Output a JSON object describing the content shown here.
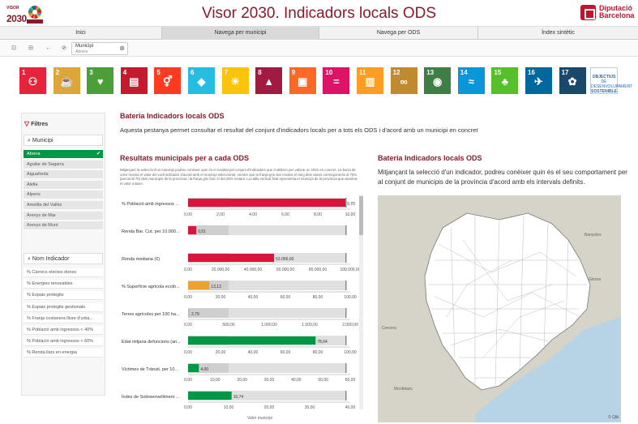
{
  "header": {
    "logo_top": "VISOR",
    "logo_main": "2030",
    "title": "Visor 2030. Indicadors locals ODS",
    "org_line1": "Diputació",
    "org_line2": "Barcelona"
  },
  "nav": {
    "tabs": [
      {
        "label": "Inici"
      },
      {
        "label": "Navega per municipi"
      },
      {
        "label": "Navega per ODS"
      },
      {
        "label": "Índex sintètic"
      }
    ]
  },
  "filter_chip": {
    "label": "Municipi",
    "value": "Abrera"
  },
  "sdg_icons": [
    {
      "num": "1",
      "color": "#e5243b",
      "icon": "family-icon"
    },
    {
      "num": "2",
      "color": "#dda63a",
      "icon": "bowl-icon"
    },
    {
      "num": "3",
      "color": "#4c9f38",
      "icon": "heartbeat-icon"
    },
    {
      "num": "4",
      "color": "#c5192d",
      "icon": "book-icon"
    },
    {
      "num": "5",
      "color": "#ff3a21",
      "icon": "gender-icon"
    },
    {
      "num": "6",
      "color": "#26bde2",
      "icon": "water-drop-icon"
    },
    {
      "num": "7",
      "color": "#fcc30b",
      "icon": "sun-icon"
    },
    {
      "num": "8",
      "color": "#a21942",
      "icon": "growth-chart-icon"
    },
    {
      "num": "9",
      "color": "#fd6925",
      "icon": "cubes-icon"
    },
    {
      "num": "10",
      "color": "#dd1367",
      "icon": "equality-icon"
    },
    {
      "num": "11",
      "color": "#fd9d24",
      "icon": "buildings-icon"
    },
    {
      "num": "12",
      "color": "#bf8b2e",
      "icon": "infinity-icon"
    },
    {
      "num": "13",
      "color": "#3f7e44",
      "icon": "eye-globe-icon"
    },
    {
      "num": "14",
      "color": "#0a97d9",
      "icon": "fish-icon"
    },
    {
      "num": "15",
      "color": "#56c02b",
      "icon": "tree-icon"
    },
    {
      "num": "16",
      "color": "#00689d",
      "icon": "dove-icon"
    },
    {
      "num": "17",
      "color": "#19486a",
      "icon": "flower-icon"
    }
  ],
  "sdg_extra": {
    "line1": "OBJECTIUS",
    "line2": "DE DESENVOLUPAMENT",
    "line3": "SOSTENIBLE"
  },
  "sidebar": {
    "filters_title": "Filtres",
    "municipi_label": "Municipi",
    "municipalities": [
      "Abrera",
      "Aguilar de Segarra",
      "Aiguafreda",
      "Alella",
      "Alpens",
      "Ametlla del Vallès",
      "Arenys de Mar",
      "Arenys de Munt"
    ],
    "selected": "Abrera",
    "indicator_label": "Nom Indicador",
    "indicators": [
      "% Càrrecs electes dones",
      "% Energies renovables",
      "% Espais protegits",
      "% Espais protegits gestionats",
      "% Franja costanera lliure d'urba...",
      "% Població amb ingressos < 40%",
      "% Població amb ingressos < 60%",
      "% Renda llars en energia"
    ]
  },
  "main": {
    "section_title": "Bateria Indicadors locals ODS",
    "intro": "Aquesta pestanya permet consultar el resultat del conjunt d'indicadors locals per a tots els ODS i d'acord amb un municipi en concret",
    "results_title": "Resultats municipals per a cada ODS",
    "results_desc": "Mitjançant la selecció d'un municipi podreu conèixer quin és el resultat pel conjunt d'indicadors que s'utilitzen per valorar un ODS en concret. La barra de color mostra el valor del codi indicador d'acord amb el municipi seleccionat, mentre que la franja gris clar mostra el rang dels valors corresponents al 75% (percentil 75) dels municipis de la província i la franja gris fosc el del 25% restant. La ratlla vertical final representa el municipi de la província que assoleix el valor màxim.",
    "right_title": "Bateria Indicadors locals ODS",
    "right_desc": "Mitjançant la selecció d'un indicador, podreu conèixer quin és el seu comportament per al conjunt de municipis de la província d'acord amb els intervals definits.",
    "x_axis_label": "Valor municipi",
    "map_copyright": "© Qlik"
  },
  "chart_data": {
    "type": "bar",
    "orientation": "horizontal",
    "indicators": [
      {
        "label": "% Població amb ingressos ...",
        "value": 9.7,
        "value_label": "9,70",
        "max": 10,
        "ticks": [
          "0,00",
          "2,00",
          "4,00",
          "6,00",
          "8,00",
          "10,00"
        ],
        "color": "#dc143c"
      },
      {
        "label": "Renda Bar. Cut. per 10.000...",
        "value": 0.51,
        "value_label": "0,51",
        "max": 10,
        "ticks": [],
        "color": "#dc143c"
      },
      {
        "label": "Renda mediana (€)",
        "value": 53066,
        "value_label": "53.066,00",
        "max": 100000,
        "ticks": [
          "0,00",
          "20.000,00",
          "40.000,00",
          "60.000,00",
          "80.000,00",
          "100.000,00"
        ],
        "color": "#dc143c"
      },
      {
        "label": "% Superfície agrícola ecolò...",
        "value": 13.13,
        "value_label": "13,13",
        "max": 100,
        "ticks": [
          "0,00",
          "20,00",
          "40,00",
          "60,00",
          "80,00",
          "100,00"
        ],
        "color": "#f0a030"
      },
      {
        "label": "Terres agrícoles per 100 ha...",
        "value": 2.79,
        "value_label": "2,79",
        "max": 2000,
        "ticks": [
          "0,00",
          "500,00",
          "1.000,00",
          "1.500,00",
          "2.000,00"
        ],
        "color": "#bbbbbb"
      },
      {
        "label": "Edat mitjana defuncions (an...",
        "value": 78.64,
        "value_label": "78,64",
        "max": 100,
        "ticks": [
          "0,00",
          "20,00",
          "40,00",
          "60,00",
          "80,00",
          "100,00"
        ],
        "color": "#009845"
      },
      {
        "label": "Víctimes de Trànsit, per 10...",
        "value": 4,
        "value_label": "4,00",
        "max": 60,
        "ticks": [
          "0,00",
          "10,00",
          "20,00",
          "30,00",
          "40,00",
          "50,00",
          "60,00"
        ],
        "color": "#009845"
      },
      {
        "label": "Índex de Sobreenvelliment ...",
        "value": 10.74,
        "value_label": "10,74",
        "max": 40,
        "ticks": [
          "0,00",
          "10,00",
          "20,00",
          "30,00",
          "40,00"
        ],
        "color": "#009845"
      }
    ]
  }
}
